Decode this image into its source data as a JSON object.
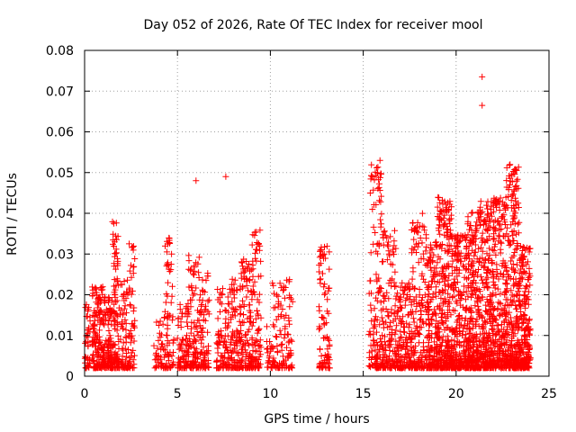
{
  "chart_data": {
    "type": "scatter",
    "title": "Day 052 of 2026, Rate Of TEC Index for receiver mool",
    "xlabel": "GPS time / hours",
    "ylabel": "ROTI / TECUs",
    "xlim": [
      0,
      25
    ],
    "ylim": [
      0,
      0.08
    ],
    "xticks": [
      "0",
      "5",
      "10",
      "15",
      "20",
      "25"
    ],
    "yticks": [
      "0",
      "0.01",
      "0.02",
      "0.03",
      "0.04",
      "0.05",
      "0.06",
      "0.07",
      "0.08"
    ],
    "grid": true,
    "marker": "plus",
    "color": "#ff0000",
    "clusters": [
      {
        "x": [
          0.0,
          0.3
        ],
        "n": 40,
        "ymax": 0.018
      },
      {
        "x": [
          0.4,
          1.0
        ],
        "n": 140,
        "ymax": 0.022
      },
      {
        "x": [
          1.0,
          1.5
        ],
        "n": 110,
        "ymax": 0.02
      },
      {
        "x": [
          1.5,
          1.8
        ],
        "n": 90,
        "ymax": 0.038
      },
      {
        "x": [
          1.8,
          2.3
        ],
        "n": 70,
        "ymax": 0.024
      },
      {
        "x": [
          2.3,
          2.7
        ],
        "n": 60,
        "ymax": 0.033
      },
      {
        "x": [
          3.7,
          4.3
        ],
        "n": 40,
        "ymax": 0.015
      },
      {
        "x": [
          4.3,
          4.8
        ],
        "n": 70,
        "ymax": 0.034
      },
      {
        "x": [
          5.0,
          5.6
        ],
        "n": 80,
        "ymax": 0.018
      },
      {
        "x": [
          5.6,
          6.2
        ],
        "n": 90,
        "ymax": 0.03
      },
      {
        "x": [
          6.2,
          6.7
        ],
        "n": 70,
        "ymax": 0.026
      },
      {
        "x": [
          7.1,
          7.8
        ],
        "n": 90,
        "ymax": 0.022
      },
      {
        "x": [
          7.8,
          8.4
        ],
        "n": 90,
        "ymax": 0.024
      },
      {
        "x": [
          8.4,
          9.0
        ],
        "n": 110,
        "ymax": 0.029
      },
      {
        "x": [
          9.0,
          9.5
        ],
        "n": 100,
        "ymax": 0.036
      },
      {
        "x": [
          9.8,
          10.5
        ],
        "n": 60,
        "ymax": 0.023
      },
      {
        "x": [
          10.5,
          11.2
        ],
        "n": 70,
        "ymax": 0.024
      },
      {
        "x": [
          12.6,
          13.2
        ],
        "n": 90,
        "ymax": 0.032
      },
      {
        "x": [
          15.3,
          16.0
        ],
        "n": 130,
        "ymax": 0.053
      },
      {
        "x": [
          16.0,
          16.8
        ],
        "n": 140,
        "ymax": 0.036
      },
      {
        "x": [
          16.8,
          17.6
        ],
        "n": 140,
        "ymax": 0.023
      },
      {
        "x": [
          17.6,
          18.4
        ],
        "n": 150,
        "ymax": 0.04
      },
      {
        "x": [
          18.4,
          19.0
        ],
        "n": 170,
        "ymax": 0.033
      },
      {
        "x": [
          19.0,
          19.8
        ],
        "n": 280,
        "ymax": 0.044
      },
      {
        "x": [
          19.8,
          20.6
        ],
        "n": 250,
        "ymax": 0.035
      },
      {
        "x": [
          20.6,
          21.3
        ],
        "n": 260,
        "ymax": 0.041
      },
      {
        "x": [
          21.3,
          22.0
        ],
        "n": 250,
        "ymax": 0.043
      },
      {
        "x": [
          22.0,
          22.7
        ],
        "n": 230,
        "ymax": 0.044
      },
      {
        "x": [
          22.7,
          23.4
        ],
        "n": 260,
        "ymax": 0.052
      },
      {
        "x": [
          23.4,
          24.0
        ],
        "n": 220,
        "ymax": 0.032
      }
    ],
    "outliers": [
      {
        "x": 6.0,
        "y": 0.048
      },
      {
        "x": 7.6,
        "y": 0.049
      },
      {
        "x": 21.4,
        "y": 0.0735
      },
      {
        "x": 21.4,
        "y": 0.0665
      },
      {
        "x": 22.9,
        "y": 0.052
      },
      {
        "x": 15.9,
        "y": 0.053
      }
    ]
  }
}
